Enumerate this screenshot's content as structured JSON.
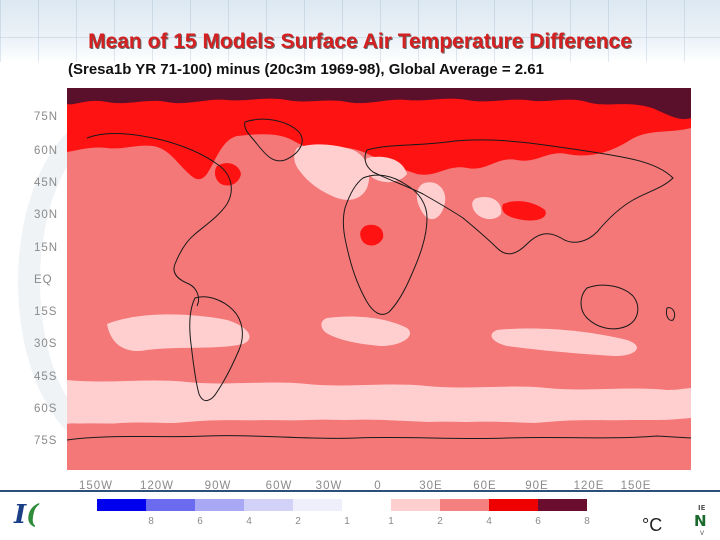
{
  "slide": {
    "title": "Mean of 15 Models Surface Air Temperature Difference",
    "subtitle": "(Sresa1b YR 71-100) minus (20c3m 1969-98),  Global Average = 2.61"
  },
  "map": {
    "projection": "equirectangular",
    "lat_labels": [
      "75N",
      "60N",
      "45N",
      "30N",
      "15N",
      "EQ",
      "15S",
      "30S",
      "45S",
      "60S",
      "75S"
    ],
    "lon_labels": [
      "150W",
      "120W",
      "90W",
      "60W",
      "30W",
      "0",
      "30E",
      "60E",
      "90E",
      "120E",
      "150E"
    ],
    "colors": {
      "ocean_base": "#f47878",
      "arctic": "#ff0f0f",
      "polar_cap": "#5a0f2a",
      "light": "#ffcfd0",
      "land_outline": "#1a1a1a"
    }
  },
  "legend": {
    "negative_ticks": [
      "8",
      "6",
      "4",
      "2",
      "1"
    ],
    "positive_ticks": [
      "1",
      "2",
      "4",
      "6",
      "8"
    ],
    "colors": [
      "#0000ee",
      "#6b6bf0",
      "#a8a8f4",
      "#d2d2f8",
      "#efeffb",
      "#ffffff",
      "#ffcfcf",
      "#f58080",
      "#ee0000",
      "#6b0d2f"
    ],
    "unit": "°C"
  }
}
